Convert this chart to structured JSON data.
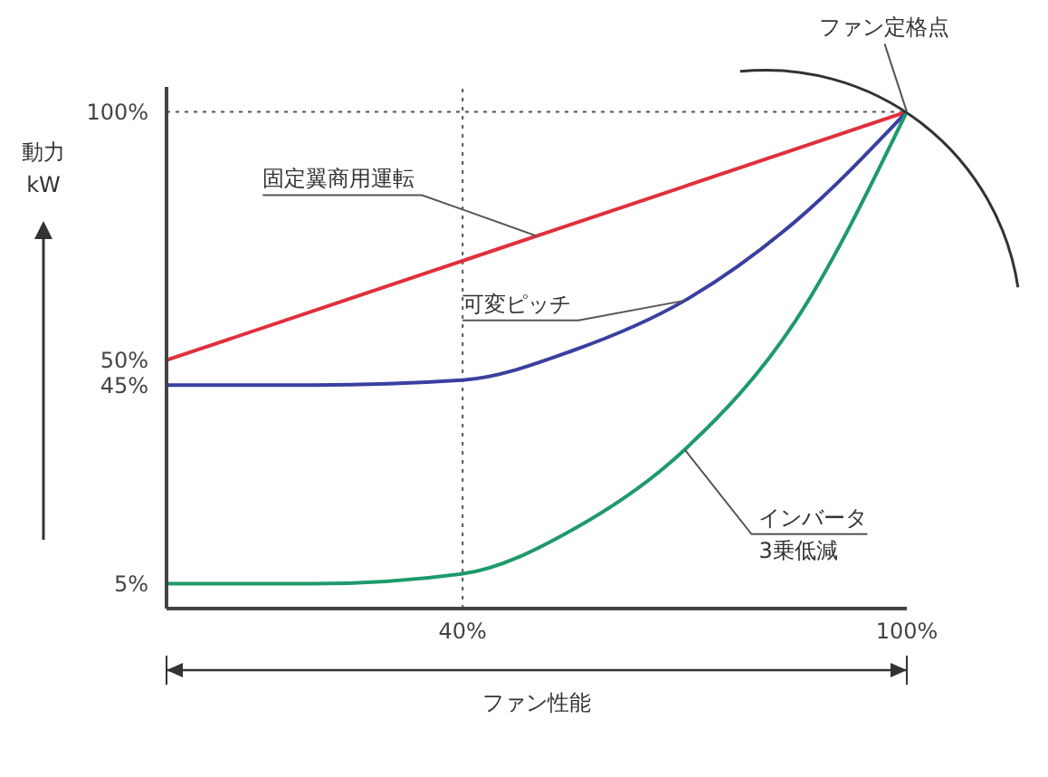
{
  "chart_data": {
    "type": "line",
    "xlabel": "ファン性能",
    "ylabel": "動力\nkW",
    "xlim": [
      0,
      100
    ],
    "xticks": [
      {
        "value": 40,
        "label": "40%"
      },
      {
        "value": 100,
        "label": "100%"
      }
    ],
    "ylim": [
      0,
      105
    ],
    "yticks": [
      {
        "value": 5,
        "label": "5%"
      },
      {
        "value": 45,
        "label": "45%"
      },
      {
        "value": 50,
        "label": "50%"
      },
      {
        "value": 100,
        "label": "100%"
      }
    ],
    "series": [
      {
        "color": "#e0303c",
        "x": [
          0,
          40,
          100
        ],
        "values": [
          50,
          70,
          100
        ]
      },
      {
        "color": "#3a3fa0",
        "x": [
          0,
          20,
          40,
          55,
          70,
          85,
          100
        ],
        "values": [
          45,
          45,
          46,
          52,
          62,
          78,
          100
        ]
      },
      {
        "color": "#1e9a6a",
        "x": [
          0,
          20,
          40,
          55,
          70,
          85,
          100
        ],
        "values": [
          5,
          5,
          7,
          16,
          32,
          58,
          100
        ]
      }
    ],
    "ref_lines": [
      {
        "axis": "y",
        "value": 100,
        "line_style": "dotted",
        "color": "#555555"
      },
      {
        "axis": "x",
        "value": 40,
        "line_style": "dotted",
        "color": "#555555"
      }
    ],
    "annotations": [
      {
        "text": "固定翼商用運転",
        "x": 50,
        "y": 75
      },
      {
        "text": "可変ピッチ",
        "x": 70,
        "y": 62
      },
      {
        "text": "インバータ\n3乗低減",
        "x": 70,
        "y": 32
      },
      {
        "text": "ファン定格点",
        "x": 100,
        "y": 100
      }
    ],
    "grid": false,
    "legend": false
  }
}
